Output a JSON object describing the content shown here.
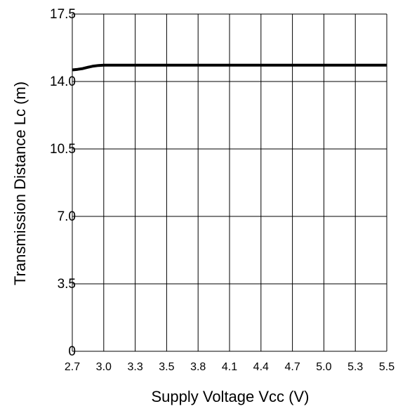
{
  "chart_data": {
    "type": "line",
    "title": "",
    "xlabel": "Supply Voltage Vcc (V)",
    "ylabel": "Transmission Distance Lc (m)",
    "x_ticks": [
      "2.7",
      "3.0",
      "3.3",
      "3.5",
      "3.8",
      "4.1",
      "4.4",
      "4.7",
      "5.0",
      "5.3",
      "5.5"
    ],
    "y_ticks": [
      "0",
      "3.5",
      "7.0",
      "10.5",
      "14.0",
      "17.5"
    ],
    "xlim": [
      2.7,
      5.5
    ],
    "ylim": [
      0,
      17.5
    ],
    "grid": true,
    "series": [
      {
        "x": [
          2.7,
          2.75,
          2.8,
          2.85,
          2.9,
          2.95,
          3.0,
          3.3,
          3.5,
          3.8,
          4.1,
          4.4,
          4.7,
          5.0,
          5.3,
          5.5
        ],
        "y": [
          14.6,
          14.63,
          14.67,
          14.74,
          14.8,
          14.83,
          14.85,
          14.85,
          14.85,
          14.85,
          14.85,
          14.85,
          14.85,
          14.85,
          14.85,
          14.85
        ],
        "color": "#000000"
      }
    ]
  }
}
